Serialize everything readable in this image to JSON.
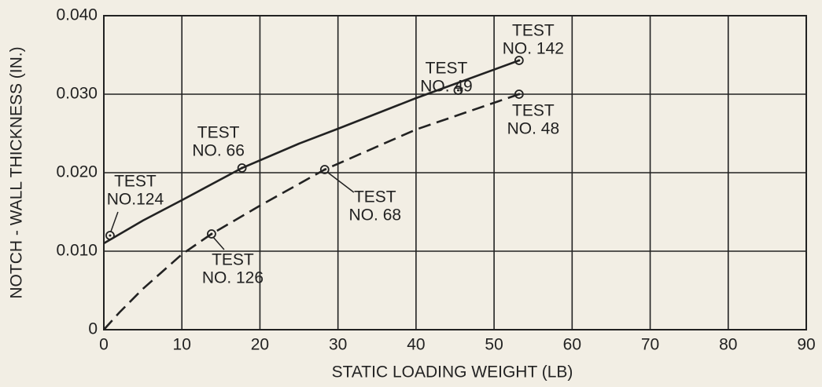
{
  "chart_data": {
    "type": "scatter",
    "xlabel": "STATIC LOADING WEIGHT (LB)",
    "ylabel": "NOTCH - WALL  THICKNESS (IN.)",
    "xlim": [
      0,
      90
    ],
    "ylim": [
      0,
      0.04
    ],
    "xticks": [
      0,
      10,
      20,
      30,
      40,
      50,
      60,
      70,
      80,
      90
    ],
    "yticks": [
      0,
      {
        "value": 0.01,
        "label": "0.010"
      },
      {
        "value": 0.02,
        "label": "0.020"
      },
      {
        "value": 0.03,
        "label": "0.030"
      },
      {
        "value": 0.04,
        "label": "0.040"
      }
    ],
    "grid": true,
    "color": "#222222",
    "points": {
      "x": [
        0.8,
        17.7,
        45.4,
        53.2,
        53.2,
        28.3,
        13.8
      ],
      "values": [
        0.012,
        0.0206,
        0.0305,
        0.0343,
        0.03,
        0.0204,
        0.0122
      ],
      "labels": [
        [
          "TEST",
          "NO.124"
        ],
        [
          "TEST",
          "NO. 66"
        ],
        [
          "TEST",
          "NO. 49"
        ],
        [
          "TEST",
          "NO. 142"
        ],
        [
          "TEST",
          "NO. 48"
        ],
        [
          "TEST",
          "NO. 68"
        ],
        [
          "TEST",
          "NO. 126"
        ]
      ]
    },
    "curves": [
      {
        "style": "solid",
        "x": [
          0,
          5,
          10,
          17.7,
          25,
          30,
          40,
          53.2
        ],
        "values": [
          0.011,
          0.0139,
          0.0165,
          0.0206,
          0.0237,
          0.0256,
          0.0295,
          0.0343
        ]
      },
      {
        "style": "dashed",
        "x": [
          0,
          2,
          5,
          10,
          13.8,
          20,
          28.3,
          40,
          53.2
        ],
        "values": [
          0,
          0.0022,
          0.0052,
          0.0096,
          0.0122,
          0.0158,
          0.0204,
          0.0255,
          0.03
        ]
      }
    ]
  }
}
